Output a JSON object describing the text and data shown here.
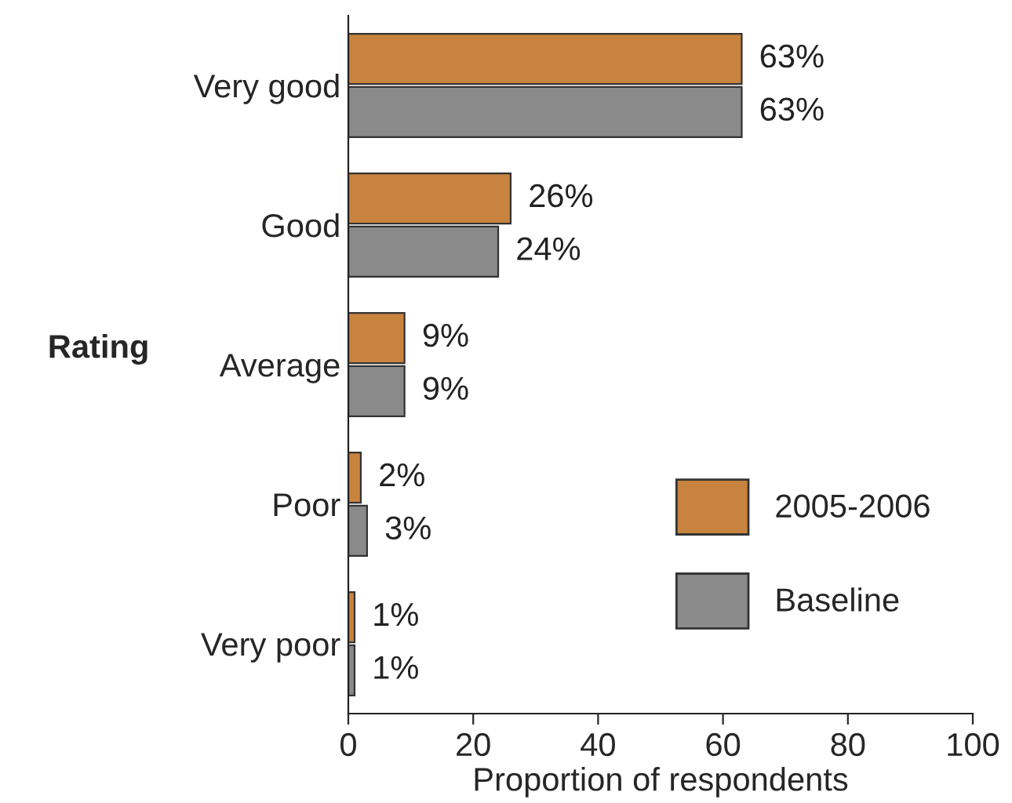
{
  "chart_data": {
    "type": "bar",
    "orientation": "horizontal",
    "categories": [
      "Very good",
      "Good",
      "Average",
      "Poor",
      "Very poor"
    ],
    "series": [
      {
        "name": "2005-2006",
        "color": "#c8843f",
        "values": [
          63,
          26,
          9,
          2,
          1
        ],
        "value_labels": [
          "63%",
          "26%",
          "9%",
          "2%",
          "1%"
        ]
      },
      {
        "name": "Baseline",
        "color": "#8a8a8a",
        "values": [
          63,
          24,
          9,
          3,
          1
        ],
        "value_labels": [
          "63%",
          "24%",
          "9%",
          "3%",
          "1%"
        ]
      }
    ],
    "xlim": [
      0,
      100
    ],
    "xticks": [
      0,
      20,
      40,
      60,
      80,
      100
    ],
    "xlabel": "Proportion of respondents",
    "ylabel": "Rating",
    "legend": "bottom right",
    "grid": false
  }
}
